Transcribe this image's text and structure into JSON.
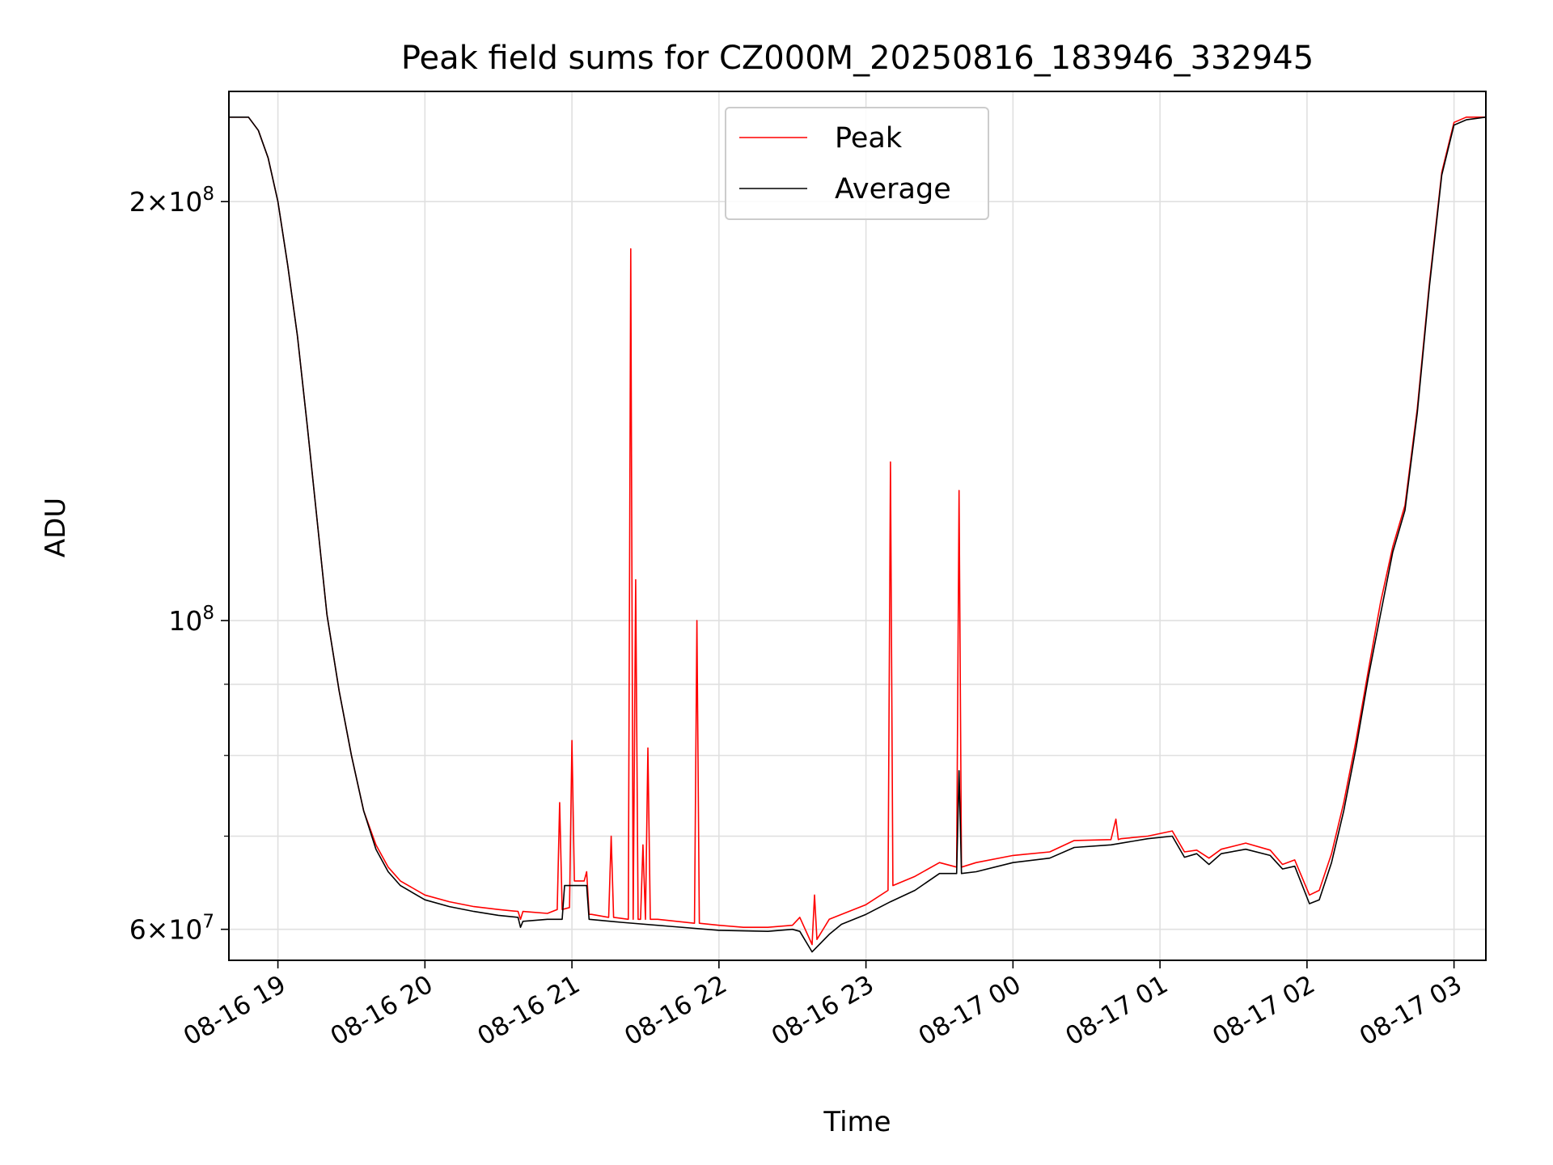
{
  "chart_data": {
    "type": "line",
    "title": "Peak field sums for CZ000M_20250816_183946_332945",
    "xlabel": "Time",
    "ylabel": "ADU",
    "y_scale": "log",
    "xlim": [
      "2025-08-16 18:40",
      "2025-08-17 03:13"
    ],
    "ylim": [
      57000000,
      240000000
    ],
    "grid": true,
    "legend_position": "top-center",
    "x_ticks": [
      {
        "value": "2025-08-16 19:00",
        "label": "08-16 19"
      },
      {
        "value": "2025-08-16 20:00",
        "label": "08-16 20"
      },
      {
        "value": "2025-08-16 21:00",
        "label": "08-16 21"
      },
      {
        "value": "2025-08-16 22:00",
        "label": "08-16 22"
      },
      {
        "value": "2025-08-16 23:00",
        "label": "08-16 23"
      },
      {
        "value": "2025-08-17 00:00",
        "label": "08-17 00"
      },
      {
        "value": "2025-08-17 01:00",
        "label": "08-17 01"
      },
      {
        "value": "2025-08-17 02:00",
        "label": "08-17 02"
      },
      {
        "value": "2025-08-17 03:00",
        "label": "08-17 03"
      }
    ],
    "y_major_ticks": [
      {
        "value": 60000000,
        "mantissa": "6",
        "base": "10",
        "exp": "7"
      },
      {
        "value": 100000000,
        "mantissa": "",
        "base": "10",
        "exp": "8"
      },
      {
        "value": 200000000,
        "mantissa": "2",
        "base": "10",
        "exp": "8"
      }
    ],
    "y_minor_gridlines": [
      70000000,
      80000000,
      90000000
    ],
    "series": [
      {
        "name": "Peak",
        "color": "#ff0000",
        "x": [
          "2025-08-16 18:40",
          "2025-08-16 18:48",
          "2025-08-16 18:52",
          "2025-08-16 18:56",
          "2025-08-16 19:00",
          "2025-08-16 19:04",
          "2025-08-16 19:08",
          "2025-08-16 19:12",
          "2025-08-16 19:16",
          "2025-08-16 19:20",
          "2025-08-16 19:25",
          "2025-08-16 19:30",
          "2025-08-16 19:35",
          "2025-08-16 19:40",
          "2025-08-16 19:45",
          "2025-08-16 19:50",
          "2025-08-16 20:00",
          "2025-08-16 20:10",
          "2025-08-16 20:20",
          "2025-08-16 20:30",
          "2025-08-16 20:38",
          "2025-08-16 20:39",
          "2025-08-16 20:40",
          "2025-08-16 20:50",
          "2025-08-16 20:54",
          "2025-08-16 20:55",
          "2025-08-16 20:56",
          "2025-08-16 20:59",
          "2025-08-16 21:00",
          "2025-08-16 21:01",
          "2025-08-16 21:05",
          "2025-08-16 21:06",
          "2025-08-16 21:07",
          "2025-08-16 21:08",
          "2025-08-16 21:15",
          "2025-08-16 21:16",
          "2025-08-16 21:17",
          "2025-08-16 21:23",
          "2025-08-16 21:24",
          "2025-08-16 21:25",
          "2025-08-16 21:26",
          "2025-08-16 21:27",
          "2025-08-16 21:28",
          "2025-08-16 21:29",
          "2025-08-16 21:30",
          "2025-08-16 21:31",
          "2025-08-16 21:32",
          "2025-08-16 21:33",
          "2025-08-16 21:34",
          "2025-08-16 21:35",
          "2025-08-16 21:50",
          "2025-08-16 21:51",
          "2025-08-16 21:52",
          "2025-08-16 22:00",
          "2025-08-16 22:10",
          "2025-08-16 22:20",
          "2025-08-16 22:30",
          "2025-08-16 22:33",
          "2025-08-16 22:38",
          "2025-08-16 22:39",
          "2025-08-16 22:40",
          "2025-08-16 22:45",
          "2025-08-16 22:50",
          "2025-08-16 23:00",
          "2025-08-16 23:09",
          "2025-08-16 23:10",
          "2025-08-16 23:11",
          "2025-08-16 23:20",
          "2025-08-16 23:30",
          "2025-08-16 23:37",
          "2025-08-16 23:38",
          "2025-08-16 23:39",
          "2025-08-16 23:45",
          "2025-08-17 00:00",
          "2025-08-17 00:15",
          "2025-08-17 00:25",
          "2025-08-17 00:40",
          "2025-08-17 00:42",
          "2025-08-17 00:43",
          "2025-08-17 00:44",
          "2025-08-17 00:55",
          "2025-08-17 01:05",
          "2025-08-17 01:10",
          "2025-08-17 01:15",
          "2025-08-17 01:20",
          "2025-08-17 01:25",
          "2025-08-17 01:35",
          "2025-08-17 01:45",
          "2025-08-17 01:50",
          "2025-08-17 01:55",
          "2025-08-17 02:01",
          "2025-08-17 02:05",
          "2025-08-17 02:10",
          "2025-08-17 02:15",
          "2025-08-17 02:20",
          "2025-08-17 02:25",
          "2025-08-17 02:30",
          "2025-08-17 02:35",
          "2025-08-17 02:40",
          "2025-08-17 02:45",
          "2025-08-17 02:50",
          "2025-08-17 02:55",
          "2025-08-17 03:00",
          "2025-08-17 03:05",
          "2025-08-17 03:13"
        ],
        "y": [
          230000000,
          230000000,
          225000000,
          215000000,
          200000000,
          180000000,
          160000000,
          138000000,
          118000000,
          101000000,
          89000000,
          80000000,
          73000000,
          69000000,
          66500000,
          65000000,
          63500000,
          62800000,
          62300000,
          62000000,
          61800000,
          61000000,
          61800000,
          61600000,
          62000000,
          74000000,
          62000000,
          62200000,
          82000000,
          65000000,
          65000000,
          66000000,
          61500000,
          61500000,
          61200000,
          70000000,
          61200000,
          61000000,
          185000000,
          61000000,
          107000000,
          61000000,
          61000000,
          69000000,
          61000000,
          81000000,
          61000000,
          61000000,
          61000000,
          61000000,
          60600000,
          100000000,
          60600000,
          60400000,
          60200000,
          60200000,
          60400000,
          61200000,
          58500000,
          63500000,
          59000000,
          61000000,
          61500000,
          62500000,
          64000000,
          130000000,
          64500000,
          65500000,
          67000000,
          66500000,
          124000000,
          66500000,
          67000000,
          67800000,
          68200000,
          69500000,
          69600000,
          72000000,
          69600000,
          69700000,
          70000000,
          70600000,
          68200000,
          68400000,
          67500000,
          68500000,
          69200000,
          68400000,
          66800000,
          67300000,
          63500000,
          64000000,
          68000000,
          74000000,
          82000000,
          92000000,
          103000000,
          113000000,
          121000000,
          142000000,
          175000000,
          210000000,
          228000000,
          230000000,
          230000000
        ]
      },
      {
        "name": "Average",
        "color": "#000000",
        "x": [
          "2025-08-16 18:40",
          "2025-08-16 18:48",
          "2025-08-16 18:52",
          "2025-08-16 18:56",
          "2025-08-16 19:00",
          "2025-08-16 19:04",
          "2025-08-16 19:08",
          "2025-08-16 19:12",
          "2025-08-16 19:16",
          "2025-08-16 19:20",
          "2025-08-16 19:25",
          "2025-08-16 19:30",
          "2025-08-16 19:35",
          "2025-08-16 19:40",
          "2025-08-16 19:45",
          "2025-08-16 19:50",
          "2025-08-16 20:00",
          "2025-08-16 20:10",
          "2025-08-16 20:20",
          "2025-08-16 20:30",
          "2025-08-16 20:38",
          "2025-08-16 20:39",
          "2025-08-16 20:40",
          "2025-08-16 20:50",
          "2025-08-16 20:56",
          "2025-08-16 20:57",
          "2025-08-16 21:06",
          "2025-08-16 21:07",
          "2025-08-16 21:20",
          "2025-08-16 21:40",
          "2025-08-16 22:00",
          "2025-08-16 22:20",
          "2025-08-16 22:30",
          "2025-08-16 22:33",
          "2025-08-16 22:38",
          "2025-08-16 22:45",
          "2025-08-16 22:50",
          "2025-08-16 23:00",
          "2025-08-16 23:10",
          "2025-08-16 23:20",
          "2025-08-16 23:30",
          "2025-08-16 23:37",
          "2025-08-16 23:38",
          "2025-08-16 23:39",
          "2025-08-16 23:45",
          "2025-08-17 00:00",
          "2025-08-17 00:15",
          "2025-08-17 00:25",
          "2025-08-17 00:40",
          "2025-08-17 00:55",
          "2025-08-17 01:05",
          "2025-08-17 01:10",
          "2025-08-17 01:15",
          "2025-08-17 01:20",
          "2025-08-17 01:25",
          "2025-08-17 01:35",
          "2025-08-17 01:45",
          "2025-08-17 01:50",
          "2025-08-17 01:55",
          "2025-08-17 02:01",
          "2025-08-17 02:05",
          "2025-08-17 02:10",
          "2025-08-17 02:15",
          "2025-08-17 02:20",
          "2025-08-17 02:25",
          "2025-08-17 02:30",
          "2025-08-17 02:35",
          "2025-08-17 02:40",
          "2025-08-17 02:45",
          "2025-08-17 02:50",
          "2025-08-17 02:55",
          "2025-08-17 03:00",
          "2025-08-17 03:05",
          "2025-08-17 03:13"
        ],
        "y": [
          230000000,
          230000000,
          225000000,
          215000000,
          200000000,
          180000000,
          160000000,
          138000000,
          118000000,
          101000000,
          89000000,
          80000000,
          73000000,
          68500000,
          66000000,
          64500000,
          63000000,
          62300000,
          61800000,
          61400000,
          61200000,
          60200000,
          60800000,
          61000000,
          61000000,
          64500000,
          64500000,
          61000000,
          60700000,
          60300000,
          59900000,
          59800000,
          60000000,
          59800000,
          57800000,
          59500000,
          60500000,
          61500000,
          62800000,
          64000000,
          65800000,
          65800000,
          78000000,
          65800000,
          66000000,
          67000000,
          67500000,
          68700000,
          69000000,
          69700000,
          70000000,
          67600000,
          68000000,
          66800000,
          68000000,
          68500000,
          67800000,
          66300000,
          66600000,
          62600000,
          63000000,
          67000000,
          73000000,
          81000000,
          91000000,
          101000000,
          112000000,
          120000000,
          141000000,
          174000000,
          209000000,
          227000000,
          229000000,
          230000000
        ]
      }
    ]
  }
}
